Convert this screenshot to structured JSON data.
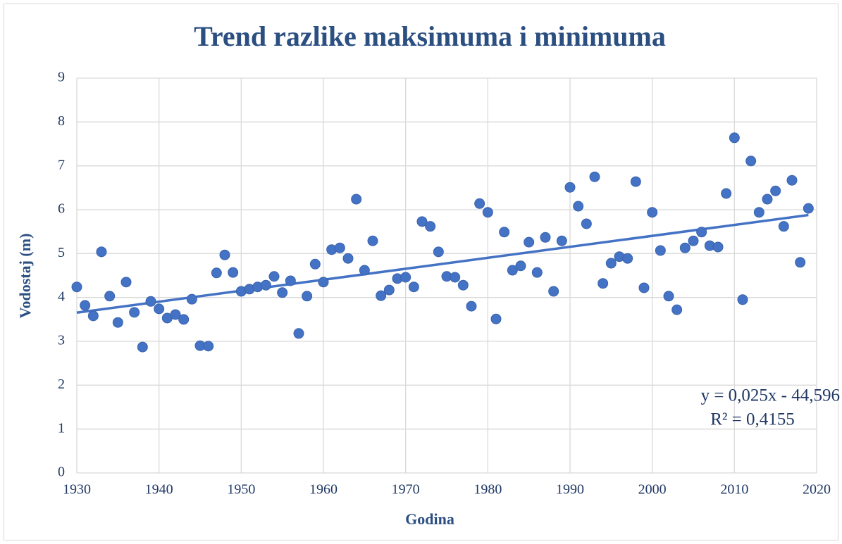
{
  "chart_data": {
    "type": "scatter",
    "title": "Trend razlike maksimuma i minimuma",
    "x_label": "Godina",
    "y_label": "Vodostaj (m)",
    "x": [
      1930,
      1931,
      1932,
      1933,
      1934,
      1935,
      1936,
      1937,
      1938,
      1939,
      1940,
      1941,
      1942,
      1943,
      1944,
      1945,
      1946,
      1947,
      1948,
      1949,
      1950,
      1951,
      1952,
      1953,
      1954,
      1955,
      1956,
      1957,
      1958,
      1959,
      1960,
      1961,
      1962,
      1963,
      1964,
      1965,
      1966,
      1967,
      1968,
      1969,
      1970,
      1971,
      1972,
      1973,
      1974,
      1975,
      1976,
      1977,
      1978,
      1979,
      1980,
      1981,
      1982,
      1983,
      1984,
      1985,
      1986,
      1987,
      1988,
      1989,
      1990,
      1991,
      1992,
      1993,
      1994,
      1995,
      1996,
      1997,
      1998,
      1999,
      2000,
      2001,
      2002,
      2003,
      2004,
      2005,
      2006,
      2007,
      2008,
      2009,
      2010,
      2011,
      2012,
      2013,
      2014,
      2015,
      2016,
      2017,
      2018,
      2019
    ],
    "values": [
      4.24,
      3.82,
      3.58,
      5.04,
      4.03,
      3.43,
      4.35,
      3.66,
      2.87,
      3.91,
      3.74,
      3.53,
      3.61,
      3.5,
      3.96,
      2.9,
      2.89,
      4.56,
      4.97,
      4.57,
      4.14,
      4.19,
      4.24,
      4.28,
      4.48,
      4.11,
      4.38,
      3.18,
      4.03,
      4.76,
      4.35,
      5.09,
      5.13,
      4.89,
      6.24,
      4.62,
      5.29,
      4.04,
      4.17,
      4.43,
      4.46,
      4.24,
      5.73,
      5.62,
      5.04,
      4.48,
      4.46,
      4.28,
      3.8,
      6.14,
      5.94,
      3.51,
      5.49,
      4.62,
      4.72,
      5.26,
      4.57,
      5.37,
      4.14,
      5.29,
      6.51,
      6.08,
      5.68,
      6.75,
      4.32,
      4.78,
      4.93,
      4.89,
      6.64,
      4.22,
      5.94,
      5.07,
      4.03,
      3.72,
      5.13,
      5.29,
      5.49,
      5.18,
      5.15,
      6.37,
      7.64,
      3.95,
      7.11,
      5.94,
      6.24,
      6.43,
      5.62,
      6.67,
      4.8,
      6.03
    ],
    "color": "#4472c4",
    "xlim": [
      1930,
      2020
    ],
    "xticks": [
      1930,
      1940,
      1950,
      1960,
      1970,
      1980,
      1990,
      2000,
      2010,
      2020
    ],
    "ylim": [
      0,
      9
    ],
    "yticks": [
      0,
      1,
      2,
      3,
      4,
      5,
      6,
      7,
      8,
      9
    ],
    "grid": true,
    "trendline": {
      "slope": 0.025,
      "intercept": -44.596,
      "label": "y = 0,025x - 44,596",
      "r2_label": "R² = 0,4155"
    }
  }
}
